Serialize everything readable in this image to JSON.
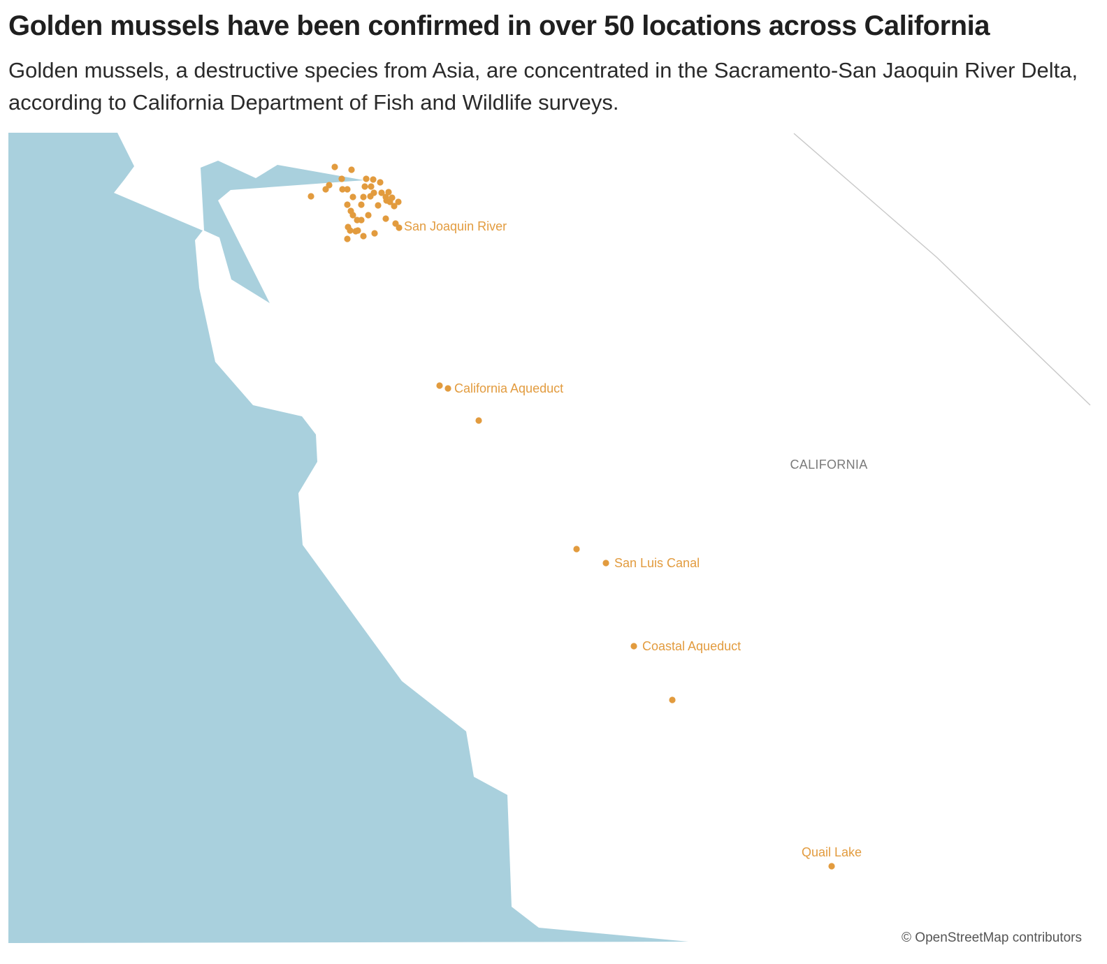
{
  "header": {
    "title": "Golden mussels have been confirmed in over 50 locations across California",
    "subtitle": "Golden mussels, a destructive species from Asia, are concentrated in the Sacramento-San Jaoquin River Delta, according to California Department of Fish and Wildlife surveys."
  },
  "map": {
    "region_label": "CALIFORNIA",
    "attribution": "© OpenStreetMap contributors",
    "colors": {
      "water": "#a9d0dd",
      "land": "#ffffff",
      "border": "#c8c8c8",
      "marker": "#e29b3e",
      "label": "#e29b3e",
      "region_label": "#7a7a7a"
    },
    "locations": [
      {
        "name": "San Joaquin River"
      },
      {
        "name": "California Aqueduct"
      },
      {
        "name": "San Luis Canal"
      },
      {
        "name": "Coastal Aqueduct"
      },
      {
        "name": "Quail Lake"
      }
    ]
  }
}
